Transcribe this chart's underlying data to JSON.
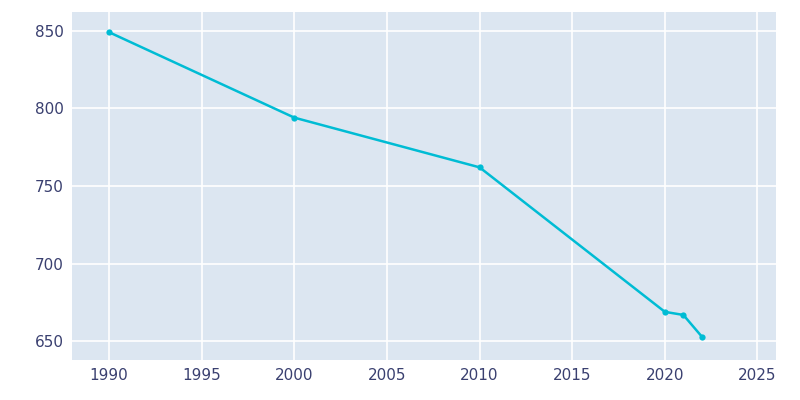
{
  "years": [
    1990,
    2000,
    2010,
    2020,
    2021,
    2022
  ],
  "population": [
    849,
    794,
    762,
    669,
    667,
    653
  ],
  "line_color": "#00bcd4",
  "marker_color": "#00bcd4",
  "fig_bg_color": "#ffffff",
  "plot_bg_color": "#dce6f1",
  "grid_color": "#ffffff",
  "tick_color": "#3a4070",
  "xlim": [
    1988,
    2026
  ],
  "ylim": [
    638,
    862
  ],
  "xticks": [
    1990,
    1995,
    2000,
    2005,
    2010,
    2015,
    2020,
    2025
  ],
  "yticks": [
    650,
    700,
    750,
    800,
    850
  ],
  "figsize": [
    8.0,
    4.0
  ],
  "dpi": 100
}
